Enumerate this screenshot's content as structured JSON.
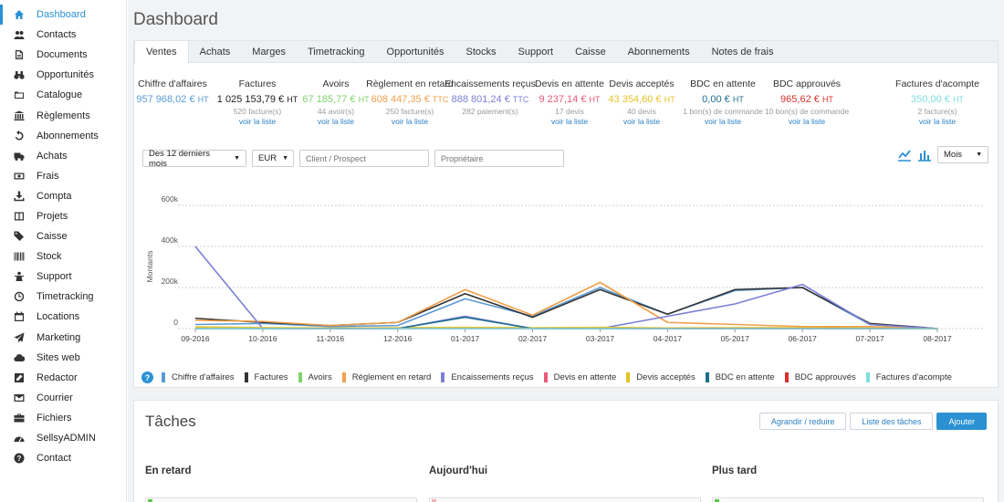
{
  "sidebar": {
    "items": [
      {
        "label": "Dashboard",
        "icon": "home-icon",
        "active": true
      },
      {
        "label": "Contacts",
        "icon": "users-icon"
      },
      {
        "label": "Documents",
        "icon": "document-icon"
      },
      {
        "label": "Opportunités",
        "icon": "binoculars-icon"
      },
      {
        "label": "Catalogue",
        "icon": "folder-icon"
      },
      {
        "label": "Règlements",
        "icon": "bank-icon"
      },
      {
        "label": "Abonnements",
        "icon": "refresh-icon"
      },
      {
        "label": "Achats",
        "icon": "truck-icon"
      },
      {
        "label": "Frais",
        "icon": "money-icon"
      },
      {
        "label": "Compta",
        "icon": "download-icon"
      },
      {
        "label": "Projets",
        "icon": "columns-icon"
      },
      {
        "label": "Caisse",
        "icon": "tags-icon"
      },
      {
        "label": "Stock",
        "icon": "barcode-icon"
      },
      {
        "label": "Support",
        "icon": "support-icon"
      },
      {
        "label": "Timetracking",
        "icon": "clock-icon"
      },
      {
        "label": "Locations",
        "icon": "calendar-icon"
      },
      {
        "label": "Marketing",
        "icon": "paper-plane-icon"
      },
      {
        "label": "Sites web",
        "icon": "cloud-icon"
      },
      {
        "label": "Redactor",
        "icon": "edit-icon"
      },
      {
        "label": "Courrier",
        "icon": "envelope-icon"
      },
      {
        "label": "Fichiers",
        "icon": "briefcase-icon"
      },
      {
        "label": "SellsyADMIN",
        "icon": "dashboard-gauge-icon"
      },
      {
        "label": "Contact",
        "icon": "question-icon"
      }
    ]
  },
  "header": {
    "title": "Dashboard"
  },
  "tabs": [
    "Ventes",
    "Achats",
    "Marges",
    "Timetracking",
    "Opportunités",
    "Stocks",
    "Support",
    "Caisse",
    "Abonnements",
    "Notes de frais"
  ],
  "active_tab": "Ventes",
  "kpis": [
    {
      "title": "Chiffre d'affaires",
      "value": "957 968,02 €",
      "unit": "HT",
      "sub": "",
      "link": "",
      "color": "#5b9bd5"
    },
    {
      "title": "Factures",
      "value": "1 025 153,79 €",
      "unit": "HT",
      "sub": "520 facture(s)",
      "link": "voir la liste",
      "color": "#222222"
    },
    {
      "title": "Avoirs",
      "value": "67 185,77 €",
      "unit": "HT",
      "sub": "44 avoir(s)",
      "link": "voir la liste",
      "color": "#7ed36a"
    },
    {
      "title": "Règlement en retard",
      "value": "608 447,35 €",
      "unit": "TTC",
      "sub": "250 facture(s)",
      "link": "voir la liste",
      "color": "#f0a04b"
    },
    {
      "title": "Encaissements reçus",
      "value": "888 801,24 €",
      "unit": "TTC",
      "sub": "282 paiement(s)",
      "link": "",
      "color": "#7b7fd6"
    },
    {
      "title": "Devis en attente",
      "value": "9 237,14 €",
      "unit": "HT",
      "sub": "17 devis",
      "link": "voir la liste",
      "color": "#e85b7a"
    },
    {
      "title": "Devis acceptés",
      "value": "43 354,60 €",
      "unit": "HT",
      "sub": "40 devis",
      "link": "voir la liste",
      "color": "#e6c229"
    },
    {
      "title": "BDC en attente",
      "value": "0,00 €",
      "unit": "HT",
      "sub": "1 bon(s) de commande",
      "link": "voir la liste",
      "color": "#1f6f8b"
    },
    {
      "title": "BDC approuvés",
      "value": "965,62 €",
      "unit": "HT",
      "sub": "10 bon(s) de commande",
      "link": "voir la liste",
      "color": "#d9312b"
    },
    {
      "title": "Factures d'acompte",
      "value": "350,00 €",
      "unit": "HT",
      "sub": "2 facture(s)",
      "link": "voir la liste",
      "color": "#7fdde0"
    }
  ],
  "filters": {
    "period": "Des 12 derniers mois",
    "currency": "EUR",
    "client_placeholder": "Client / Prospect",
    "owner_placeholder": "Propriétaire",
    "granularity": "Mois"
  },
  "chart_data": {
    "type": "line",
    "ylabel": "Montants",
    "xlabel": "",
    "ylim": [
      0,
      600000
    ],
    "yticks": [
      "0",
      "200k",
      "400k",
      "600k"
    ],
    "categories": [
      "09-2016",
      "10-2016",
      "11-2016",
      "12-2016",
      "01-2017",
      "02-2017",
      "03-2017",
      "04-2017",
      "05-2017",
      "06-2017",
      "07-2017",
      "08-2017"
    ],
    "grid": true,
    "series": [
      {
        "name": "Chiffre d'affaires",
        "color": "#5b9bd5",
        "values": [
          20000,
          25000,
          10000,
          15000,
          145000,
          60000,
          200000,
          70000,
          185000,
          200000,
          20000,
          0
        ]
      },
      {
        "name": "Factures",
        "color": "#333333",
        "values": [
          50000,
          30000,
          15000,
          30000,
          170000,
          55000,
          190000,
          70000,
          190000,
          200000,
          25000,
          0
        ]
      },
      {
        "name": "Avoirs",
        "color": "#7ed36a",
        "values": [
          5000,
          3000,
          2000,
          3000,
          5000,
          3000,
          5000,
          2000,
          3000,
          3000,
          2000,
          0
        ]
      },
      {
        "name": "Règlement en retard",
        "color": "#f0a04b",
        "values": [
          40000,
          35000,
          15000,
          30000,
          190000,
          65000,
          225000,
          30000,
          20000,
          10000,
          10000,
          0
        ]
      },
      {
        "name": "Encaissements reçus",
        "color": "#7b7fd6",
        "values": [
          400000,
          0,
          0,
          0,
          60000,
          0,
          0,
          60000,
          120000,
          215000,
          20000,
          0
        ]
      },
      {
        "name": "Devis en attente",
        "color": "#e85b7a",
        "values": [
          2000,
          1000,
          500,
          1000,
          1500,
          1000,
          1500,
          1000,
          1000,
          1000,
          500,
          0
        ]
      },
      {
        "name": "Devis acceptés",
        "color": "#e6c229",
        "values": [
          8000,
          5000,
          3000,
          4000,
          6000,
          4000,
          6000,
          3000,
          4000,
          4000,
          2000,
          0
        ]
      },
      {
        "name": "BDC en attente",
        "color": "#1f6f8b",
        "values": [
          0,
          0,
          0,
          0,
          55000,
          0,
          0,
          0,
          0,
          0,
          0,
          0
        ]
      },
      {
        "name": "BDC approuvés",
        "color": "#d9312b",
        "values": [
          500,
          300,
          200,
          300,
          400,
          200,
          300,
          200,
          200,
          200,
          100,
          0
        ]
      },
      {
        "name": "Factures d'acompte",
        "color": "#7fdde0",
        "values": [
          300,
          100,
          0,
          100,
          200,
          100,
          100,
          0,
          0,
          0,
          0,
          0
        ]
      }
    ]
  },
  "tasks": {
    "title": "Tâches",
    "actions": {
      "toggle": "Agrandir / reduire",
      "list": "Liste des tâches",
      "add": "Ajouter"
    },
    "columns": [
      {
        "title": "En retard",
        "color": "#5cc84a"
      },
      {
        "title": "Aujourd'hui",
        "color": "#f3b1b1"
      },
      {
        "title": "Plus tard",
        "color": "#5cc84a"
      }
    ]
  }
}
